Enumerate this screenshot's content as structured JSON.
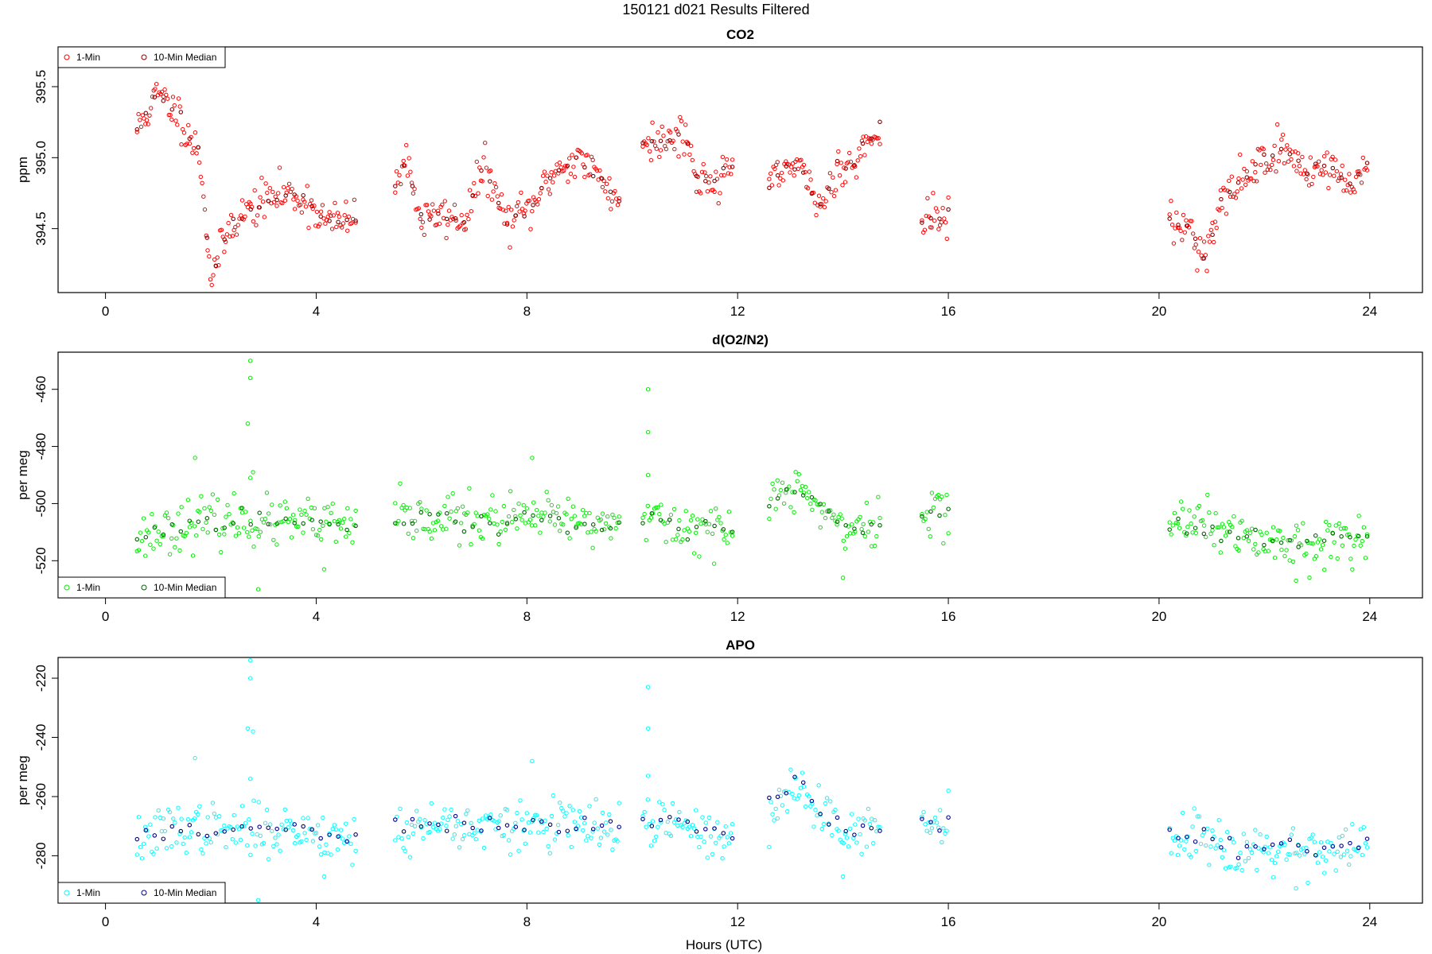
{
  "figure": {
    "title": "150121   d021   Results Filtered",
    "xlabel": "Hours (UTC)"
  },
  "colors": {
    "co2_points": "#ff0000",
    "co2_median": "#8b0000",
    "o2n2_points": "#00ee00",
    "o2n2_median": "#006400",
    "apo_points": "#00ffff",
    "apo_median": "#00008b",
    "axis": "#000000"
  },
  "chart_data": [
    {
      "type": "scatter",
      "title": "CO2",
      "ylabel": "ppm",
      "xlim": [
        -0.9,
        25.0
      ],
      "ylim": [
        394.05,
        395.78
      ],
      "x_ticks": [
        0,
        4,
        8,
        12,
        16,
        20,
        24
      ],
      "y_ticks": [
        394.5,
        395.0,
        395.5
      ],
      "y_tick_labels": [
        "394.5",
        "395.0",
        "395.5"
      ],
      "grid": false,
      "legend": {
        "position": "top-left",
        "entries": [
          "1-Min",
          "10-Min Median"
        ]
      },
      "segments": [
        {
          "x": [
            0.6,
            1.0,
            1.4,
            1.8,
            2.0,
            2.4,
            3.0,
            3.4,
            3.8,
            4.2,
            4.6,
            4.75
          ],
          "y": [
            395.2,
            395.45,
            395.3,
            395.0,
            394.15,
            394.55,
            394.7,
            394.75,
            394.7,
            394.55,
            394.55,
            394.6
          ]
        },
        {
          "x": [
            5.5,
            5.7,
            6.0,
            6.4,
            6.8,
            7.2,
            7.6,
            8.1,
            8.5,
            9.0,
            9.4,
            9.75
          ],
          "y": [
            394.8,
            395.0,
            394.55,
            394.6,
            394.55,
            394.95,
            394.55,
            394.65,
            394.9,
            395.0,
            394.85,
            394.7
          ]
        },
        {
          "x": [
            10.2,
            10.6,
            11.0,
            11.2,
            11.5,
            11.9
          ],
          "y": [
            395.15,
            395.1,
            395.2,
            394.85,
            394.85,
            394.9
          ]
        },
        {
          "x": [
            12.6,
            13.0,
            13.3,
            13.6,
            13.9,
            14.2,
            14.7
          ],
          "y": [
            394.8,
            394.95,
            394.85,
            394.65,
            394.95,
            394.95,
            395.25
          ]
        },
        {
          "x": [
            15.5,
            16.0
          ],
          "y": [
            394.55,
            394.6
          ]
        },
        {
          "x": [
            20.2,
            20.6,
            20.9,
            21.2,
            21.6,
            22.0,
            22.4,
            22.8,
            23.2,
            23.6,
            23.95
          ],
          "y": [
            394.55,
            394.5,
            394.3,
            394.7,
            394.85,
            395.0,
            395.05,
            394.9,
            394.95,
            394.8,
            394.95
          ]
        }
      ],
      "spread": 0.07,
      "median_spread": 0.02
    },
    {
      "type": "scatter",
      "title": "d(O2/N2)",
      "ylabel": "per meg",
      "xlim": [
        -0.9,
        25.0
      ],
      "ylim": [
        -533,
        -447
      ],
      "x_ticks": [
        0,
        4,
        8,
        12,
        16,
        20,
        24
      ],
      "y_ticks": [
        -520,
        -500,
        -480,
        -460
      ],
      "y_tick_labels": [
        "-520",
        "-500",
        "-480",
        "-460"
      ],
      "grid": false,
      "legend": {
        "position": "bottom-left",
        "entries": [
          "1-Min",
          "10-Min Median"
        ]
      },
      "segments": [
        {
          "x": [
            0.6,
            1.5,
            2.5,
            3.3,
            4.0,
            4.75
          ],
          "y": [
            -512,
            -507,
            -506,
            -507,
            -507,
            -509
          ]
        },
        {
          "x": [
            5.5,
            6.5,
            7.5,
            8.5,
            9.3,
            9.75
          ],
          "y": [
            -506,
            -505,
            -506,
            -505,
            -507,
            -507
          ]
        },
        {
          "x": [
            10.2,
            10.8,
            11.4,
            11.9
          ],
          "y": [
            -505,
            -508,
            -508,
            -510
          ]
        },
        {
          "x": [
            12.6,
            13.1,
            13.6,
            14.2,
            14.7
          ],
          "y": [
            -500,
            -494,
            -502,
            -510,
            -507
          ]
        },
        {
          "x": [
            15.5,
            16.0
          ],
          "y": [
            -504,
            -502
          ]
        },
        {
          "x": [
            20.2,
            20.8,
            21.3,
            22.0,
            22.6,
            23.2,
            23.95
          ],
          "y": [
            -507,
            -506,
            -511,
            -513,
            -514,
            -513,
            -512
          ]
        }
      ],
      "outliers": [
        {
          "x": 2.75,
          "y": -450
        },
        {
          "x": 2.75,
          "y": -456
        },
        {
          "x": 2.7,
          "y": -472
        },
        {
          "x": 2.8,
          "y": -489
        },
        {
          "x": 2.75,
          "y": -491
        },
        {
          "x": 2.9,
          "y": -530
        },
        {
          "x": 10.3,
          "y": -460
        },
        {
          "x": 10.3,
          "y": -475
        },
        {
          "x": 10.3,
          "y": -490
        },
        {
          "x": 1.7,
          "y": -484
        },
        {
          "x": 8.1,
          "y": -484
        },
        {
          "x": 14.0,
          "y": -526
        },
        {
          "x": 22.6,
          "y": -527
        },
        {
          "x": 4.15,
          "y": -523
        }
      ],
      "spread": 4.2,
      "median_spread": 1.8
    },
    {
      "type": "scatter",
      "title": "APO",
      "ylabel": "per meg",
      "xlim": [
        -0.9,
        25.0
      ],
      "ylim": [
        -296,
        -213
      ],
      "x_ticks": [
        0,
        4,
        8,
        12,
        16,
        20,
        24
      ],
      "y_ticks": [
        -280,
        -260,
        -240,
        -220
      ],
      "y_tick_labels": [
        "-280",
        "-260",
        "-240",
        "-220"
      ],
      "grid": false,
      "legend": {
        "position": "bottom-left",
        "entries": [
          "1-Min",
          "10-Min Median"
        ]
      },
      "segments": [
        {
          "x": [
            0.6,
            1.5,
            2.5,
            3.3,
            4.0,
            4.75
          ],
          "y": [
            -275,
            -270,
            -272,
            -271,
            -272,
            -274
          ]
        },
        {
          "x": [
            5.5,
            6.5,
            7.5,
            8.5,
            9.3,
            9.75
          ],
          "y": [
            -271,
            -269,
            -271,
            -269,
            -271,
            -271
          ]
        },
        {
          "x": [
            10.2,
            10.8,
            11.4,
            11.9
          ],
          "y": [
            -267,
            -270,
            -272,
            -274
          ]
        },
        {
          "x": [
            12.6,
            13.1,
            13.6,
            14.2,
            14.7
          ],
          "y": [
            -264,
            -257,
            -265,
            -272,
            -270
          ]
        },
        {
          "x": [
            15.5,
            16.0
          ],
          "y": [
            -269,
            -267
          ]
        },
        {
          "x": [
            20.2,
            20.8,
            21.3,
            22.0,
            22.6,
            23.2,
            23.95
          ],
          "y": [
            -274,
            -272,
            -277,
            -278,
            -277,
            -278,
            -276
          ]
        }
      ],
      "outliers": [
        {
          "x": 2.75,
          "y": -214
        },
        {
          "x": 2.75,
          "y": -220
        },
        {
          "x": 2.7,
          "y": -237
        },
        {
          "x": 2.8,
          "y": -238
        },
        {
          "x": 2.75,
          "y": -254
        },
        {
          "x": 2.9,
          "y": -295
        },
        {
          "x": 10.3,
          "y": -223
        },
        {
          "x": 10.3,
          "y": -237
        },
        {
          "x": 10.3,
          "y": -253
        },
        {
          "x": 1.7,
          "y": -247
        },
        {
          "x": 8.1,
          "y": -248
        },
        {
          "x": 14.0,
          "y": -287
        },
        {
          "x": 22.6,
          "y": -291
        },
        {
          "x": 4.15,
          "y": -287
        }
      ],
      "spread": 4.2,
      "median_spread": 1.8
    }
  ]
}
